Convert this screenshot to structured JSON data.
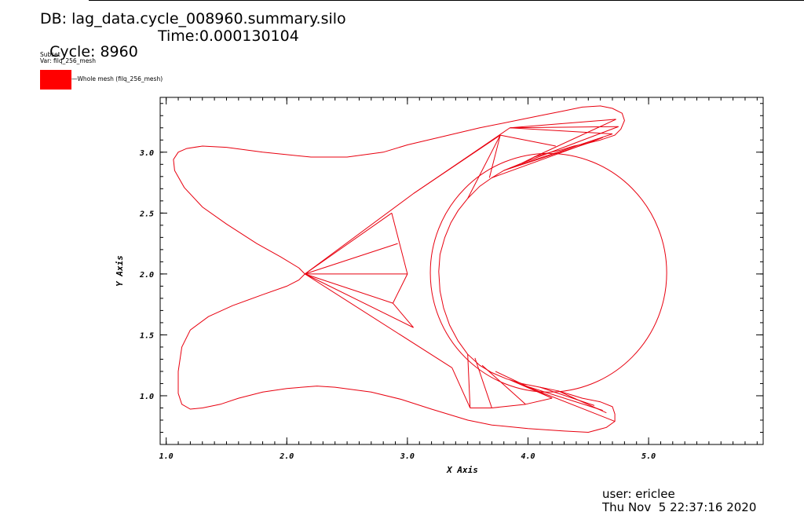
{
  "header": {
    "db": "DB: lag_data.cycle_008960.summary.silo",
    "cycle": "Cycle: 8960",
    "time": "Time:0.000130104"
  },
  "subset": {
    "title": "Subset",
    "var": "Var: filq_256_mesh",
    "legend_label": "Whole mesh (filq_256_mesh)",
    "color": "#ff0000"
  },
  "footer": {
    "user": "user: ericlee",
    "date": "Thu Nov  5 22:37:16 2020"
  },
  "chart_data": {
    "type": "line",
    "xlabel": "X Axis",
    "ylabel": "Y Axis",
    "xlim": [
      0.95,
      5.95
    ],
    "ylim": [
      0.6,
      3.45
    ],
    "xticks": [
      {
        "v": 1.0,
        "t": "1.0"
      },
      {
        "v": 2.0,
        "t": "2.0"
      },
      {
        "v": 3.0,
        "t": "3.0"
      },
      {
        "v": 4.0,
        "t": "4.0"
      },
      {
        "v": 5.0,
        "t": "5.0"
      }
    ],
    "yticks": [
      {
        "v": 1.0,
        "t": "1.0"
      },
      {
        "v": 1.5,
        "t": "1.5"
      },
      {
        "v": 2.0,
        "t": "2.0"
      },
      {
        "v": 2.5,
        "t": "2.5"
      },
      {
        "v": 3.0,
        "t": "3.0"
      }
    ],
    "minor_step": 0.1,
    "line_color": "#e8000f",
    "circle": {
      "cx": 4.17,
      "cy": 2.01,
      "r": 0.98
    },
    "outline": [
      [
        2.15,
        2.0
      ],
      [
        2.1,
        2.05
      ],
      [
        1.95,
        2.14
      ],
      [
        1.75,
        2.25
      ],
      [
        1.5,
        2.41
      ],
      [
        1.3,
        2.55
      ],
      [
        1.15,
        2.71
      ],
      [
        1.07,
        2.85
      ],
      [
        1.06,
        2.94
      ],
      [
        1.1,
        3.0
      ],
      [
        1.17,
        3.03
      ],
      [
        1.3,
        3.05
      ],
      [
        1.5,
        3.04
      ],
      [
        1.8,
        3.0
      ],
      [
        2.2,
        2.96
      ],
      [
        2.5,
        2.96
      ],
      [
        2.8,
        3.0
      ],
      [
        3.0,
        3.06
      ],
      [
        3.3,
        3.13
      ],
      [
        3.6,
        3.2
      ],
      [
        3.9,
        3.26
      ],
      [
        4.1,
        3.3
      ],
      [
        4.3,
        3.34
      ],
      [
        4.45,
        3.37
      ],
      [
        4.6,
        3.38
      ],
      [
        4.7,
        3.36
      ],
      [
        4.78,
        3.32
      ],
      [
        4.8,
        3.26
      ],
      [
        4.77,
        3.19
      ],
      [
        4.72,
        3.14
      ],
      [
        4.6,
        3.1
      ],
      [
        4.48,
        3.07
      ],
      [
        4.38,
        3.05
      ],
      [
        4.28,
        3.02
      ],
      [
        4.15,
        2.99
      ],
      [
        4.05,
        2.96
      ],
      [
        3.95,
        2.91
      ],
      [
        3.8,
        2.85
      ],
      [
        3.7,
        2.79
      ],
      [
        3.6,
        2.72
      ],
      [
        3.5,
        2.62
      ],
      [
        3.42,
        2.52
      ],
      [
        3.36,
        2.42
      ],
      [
        3.31,
        2.3
      ],
      [
        3.27,
        2.16
      ],
      [
        3.26,
        2.02
      ],
      [
        3.27,
        1.86
      ],
      [
        3.3,
        1.72
      ],
      [
        3.35,
        1.58
      ],
      [
        3.42,
        1.45
      ],
      [
        3.5,
        1.34
      ],
      [
        3.6,
        1.25
      ],
      [
        3.7,
        1.19
      ],
      [
        3.82,
        1.14
      ],
      [
        3.95,
        1.1
      ],
      [
        4.1,
        1.07
      ],
      [
        4.25,
        1.04
      ],
      [
        4.35,
        1.01
      ],
      [
        4.45,
        0.98
      ],
      [
        4.6,
        0.95
      ],
      [
        4.7,
        0.91
      ],
      [
        4.72,
        0.85
      ],
      [
        4.72,
        0.79
      ],
      [
        4.65,
        0.74
      ],
      [
        4.5,
        0.7
      ],
      [
        4.3,
        0.71
      ],
      [
        4.0,
        0.73
      ],
      [
        3.7,
        0.76
      ],
      [
        3.5,
        0.8
      ],
      [
        3.2,
        0.89
      ],
      [
        2.95,
        0.97
      ],
      [
        2.7,
        1.03
      ],
      [
        2.4,
        1.07
      ],
      [
        2.25,
        1.08
      ],
      [
        2.0,
        1.06
      ],
      [
        1.8,
        1.03
      ],
      [
        1.6,
        0.98
      ],
      [
        1.45,
        0.93
      ],
      [
        1.3,
        0.9
      ],
      [
        1.2,
        0.89
      ],
      [
        1.13,
        0.93
      ],
      [
        1.1,
        1.02
      ],
      [
        1.1,
        1.2
      ],
      [
        1.13,
        1.4
      ],
      [
        1.2,
        1.54
      ],
      [
        1.35,
        1.65
      ],
      [
        1.55,
        1.74
      ],
      [
        1.8,
        1.83
      ],
      [
        2.0,
        1.9
      ],
      [
        2.1,
        1.95
      ],
      [
        2.15,
        2.0
      ]
    ],
    "hub": [
      2.15,
      2.0
    ],
    "inner": [
      [
        2.87,
        2.5
      ],
      [
        2.92,
        2.25
      ],
      [
        3.0,
        2.0
      ],
      [
        2.88,
        1.76
      ],
      [
        3.05,
        1.56
      ]
    ],
    "inner_chain": [
      [
        2.87,
        2.5
      ],
      [
        3.0,
        2.0
      ],
      [
        2.88,
        1.76
      ],
      [
        3.05,
        1.56
      ]
    ],
    "segments": [
      [
        [
          2.15,
          2.0
        ],
        [
          3.05,
          2.66
        ]
      ],
      [
        [
          3.05,
          2.66
        ],
        [
          3.77,
          3.14
        ]
      ],
      [
        [
          3.77,
          3.14
        ],
        [
          4.23,
          3.05
        ]
      ],
      [
        [
          3.77,
          3.14
        ],
        [
          3.5,
          2.62
        ]
      ],
      [
        [
          3.77,
          3.14
        ],
        [
          3.68,
          2.79
        ]
      ],
      [
        [
          3.05,
          2.66
        ],
        [
          3.85,
          3.2
        ]
      ],
      [
        [
          3.85,
          3.2
        ],
        [
          4.73,
          3.27
        ]
      ],
      [
        [
          3.85,
          3.2
        ],
        [
          4.75,
          3.21
        ]
      ],
      [
        [
          3.85,
          3.2
        ],
        [
          4.7,
          3.15
        ]
      ],
      [
        [
          4.05,
          2.96
        ],
        [
          4.73,
          3.27
        ]
      ],
      [
        [
          3.95,
          2.91
        ],
        [
          4.75,
          3.21
        ]
      ],
      [
        [
          3.85,
          2.87
        ],
        [
          4.7,
          3.15
        ]
      ],
      [
        [
          3.7,
          2.79
        ],
        [
          4.62,
          3.12
        ]
      ],
      [
        [
          3.8,
          2.85
        ],
        [
          4.55,
          3.09
        ]
      ],
      [
        [
          2.15,
          2.0
        ],
        [
          3.37,
          1.23
        ]
      ],
      [
        [
          3.37,
          1.23
        ],
        [
          3.52,
          0.9
        ]
      ],
      [
        [
          3.52,
          0.9
        ],
        [
          3.7,
          0.9
        ]
      ],
      [
        [
          3.52,
          0.9
        ],
        [
          3.5,
          1.34
        ]
      ],
      [
        [
          3.7,
          0.9
        ],
        [
          3.56,
          1.31
        ]
      ],
      [
        [
          3.7,
          0.9
        ],
        [
          3.98,
          0.93
        ]
      ],
      [
        [
          3.98,
          0.93
        ],
        [
          3.62,
          1.25
        ]
      ],
      [
        [
          3.98,
          0.93
        ],
        [
          4.2,
          0.98
        ]
      ],
      [
        [
          4.2,
          0.98
        ],
        [
          3.73,
          1.2
        ]
      ],
      [
        [
          4.2,
          0.98
        ],
        [
          3.85,
          1.13
        ]
      ],
      [
        [
          4.72,
          0.79
        ],
        [
          3.9,
          1.11
        ]
      ],
      [
        [
          4.62,
          0.88
        ],
        [
          3.95,
          1.09
        ]
      ],
      [
        [
          4.55,
          0.92
        ],
        [
          4.1,
          1.07
        ]
      ],
      [
        [
          4.65,
          0.86
        ],
        [
          4.25,
          1.04
        ]
      ]
    ]
  }
}
